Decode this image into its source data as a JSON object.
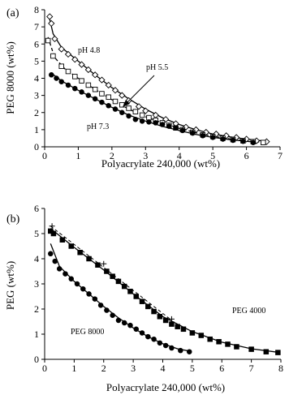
{
  "chart_data": [
    {
      "type": "scatter",
      "panel_label": "(a)",
      "xlabel": "Polyacrylate 240,000  (wt%)",
      "ylabel": "PEG 8000 (wt%)",
      "xlim": [
        0,
        7
      ],
      "ylim": [
        0,
        8
      ],
      "xticks": [
        0,
        1,
        2,
        3,
        4,
        5,
        6,
        7
      ],
      "yticks": [
        0,
        1,
        2,
        3,
        4,
        5,
        6,
        7,
        8
      ],
      "grid": false,
      "annotations": [
        "pH 4.8",
        "pH 5.5",
        "pH 7.3"
      ],
      "series": [
        {
          "name": "pH 4.8",
          "marker": "diamond-open",
          "points": [
            [
              0.15,
              7.6
            ],
            [
              0.2,
              7.2
            ],
            [
              0.3,
              6.3
            ],
            [
              0.5,
              5.7
            ],
            [
              0.7,
              5.4
            ],
            [
              0.9,
              5.1
            ],
            [
              1.1,
              4.8
            ],
            [
              1.3,
              4.5
            ],
            [
              1.5,
              4.2
            ],
            [
              1.7,
              3.9
            ],
            [
              1.9,
              3.6
            ],
            [
              2.1,
              3.3
            ],
            [
              2.3,
              3.0
            ],
            [
              2.5,
              2.7
            ],
            [
              2.8,
              2.35
            ],
            [
              3.0,
              2.1
            ],
            [
              3.3,
              1.85
            ],
            [
              3.6,
              1.6
            ],
            [
              3.9,
              1.35
            ],
            [
              4.2,
              1.15
            ],
            [
              4.5,
              1.0
            ],
            [
              4.8,
              0.85
            ],
            [
              5.1,
              0.75
            ],
            [
              5.4,
              0.65
            ],
            [
              5.7,
              0.55
            ],
            [
              6.0,
              0.45
            ],
            [
              6.3,
              0.35
            ],
            [
              6.6,
              0.3
            ]
          ],
          "curve": [
            [
              0.12,
              7.7
            ],
            [
              0.25,
              6.6
            ],
            [
              0.5,
              5.8
            ],
            [
              1.0,
              5.0
            ],
            [
              1.5,
              4.2
            ],
            [
              2.0,
              3.45
            ],
            [
              2.5,
              2.8
            ],
            [
              3.0,
              2.2
            ],
            [
              3.5,
              1.7
            ],
            [
              4.0,
              1.3
            ],
            [
              4.5,
              1.0
            ],
            [
              5.0,
              0.75
            ],
            [
              5.5,
              0.58
            ],
            [
              6.0,
              0.45
            ],
            [
              6.6,
              0.32
            ]
          ]
        },
        {
          "name": "pH 5.5",
          "marker": "square",
          "points": [
            [
              0.1,
              6.2
            ],
            [
              0.25,
              5.3
            ],
            [
              0.5,
              4.7
            ],
            [
              0.7,
              4.4
            ],
            [
              0.9,
              4.1
            ],
            [
              1.1,
              3.85
            ],
            [
              1.3,
              3.6
            ],
            [
              1.5,
              3.35
            ],
            [
              1.7,
              3.1
            ],
            [
              1.9,
              2.9
            ],
            [
              2.1,
              2.65
            ],
            [
              2.3,
              2.45
            ],
            [
              2.5,
              2.25
            ],
            [
              2.7,
              2.05
            ],
            [
              2.9,
              1.85
            ],
            [
              3.1,
              1.7
            ],
            [
              3.3,
              1.55
            ],
            [
              3.5,
              1.4
            ],
            [
              3.7,
              1.25
            ],
            [
              3.9,
              1.1
            ],
            [
              4.1,
              1.0
            ],
            [
              4.4,
              0.85
            ],
            [
              4.7,
              0.7
            ],
            [
              5.0,
              0.6
            ],
            [
              5.3,
              0.5
            ],
            [
              5.6,
              0.42
            ],
            [
              5.9,
              0.35
            ],
            [
              6.2,
              0.3
            ],
            [
              6.5,
              0.25
            ]
          ],
          "curve": [
            [
              0.1,
              6.4
            ],
            [
              0.3,
              5.2
            ],
            [
              0.6,
              4.55
            ],
            [
              1.0,
              4.0
            ],
            [
              1.5,
              3.35
            ],
            [
              2.0,
              2.75
            ],
            [
              2.5,
              2.2
            ],
            [
              3.0,
              1.75
            ],
            [
              3.5,
              1.4
            ],
            [
              4.0,
              1.08
            ],
            [
              4.5,
              0.82
            ],
            [
              5.0,
              0.62
            ],
            [
              5.5,
              0.46
            ],
            [
              6.0,
              0.34
            ],
            [
              6.5,
              0.26
            ]
          ]
        },
        {
          "name": "pH 7.3",
          "marker": "circle",
          "points": [
            [
              0.2,
              4.2
            ],
            [
              0.35,
              4.0
            ],
            [
              0.5,
              3.8
            ],
            [
              0.7,
              3.6
            ],
            [
              0.9,
              3.4
            ],
            [
              1.1,
              3.2
            ],
            [
              1.3,
              3.0
            ],
            [
              1.5,
              2.8
            ],
            [
              1.7,
              2.6
            ],
            [
              1.9,
              2.4
            ],
            [
              2.1,
              2.2
            ],
            [
              2.3,
              2.0
            ],
            [
              2.5,
              1.8
            ],
            [
              2.7,
              1.6
            ],
            [
              2.9,
              1.5
            ],
            [
              3.1,
              1.45
            ],
            [
              3.3,
              1.4
            ],
            [
              3.5,
              1.3
            ],
            [
              3.7,
              1.2
            ],
            [
              3.9,
              1.1
            ],
            [
              4.1,
              0.95
            ],
            [
              4.4,
              0.8
            ],
            [
              4.7,
              0.65
            ],
            [
              5.0,
              0.55
            ],
            [
              5.3,
              0.45
            ],
            [
              5.6,
              0.38
            ],
            [
              5.9,
              0.32
            ],
            [
              6.2,
              0.25
            ]
          ],
          "curve": [
            [
              0.2,
              4.3
            ],
            [
              0.5,
              3.85
            ],
            [
              1.0,
              3.3
            ],
            [
              1.5,
              2.8
            ],
            [
              2.0,
              2.3
            ],
            [
              2.5,
              1.85
            ],
            [
              3.0,
              1.5
            ],
            [
              3.5,
              1.2
            ],
            [
              4.0,
              0.95
            ],
            [
              4.5,
              0.72
            ],
            [
              5.0,
              0.55
            ],
            [
              5.5,
              0.42
            ],
            [
              6.0,
              0.32
            ],
            [
              6.3,
              0.27
            ]
          ]
        }
      ]
    },
    {
      "type": "scatter",
      "panel_label": "(b)",
      "xlabel": "Polyacrylate 240,000 (wt%)",
      "ylabel": "PEG (wt%)",
      "xlim": [
        0,
        8
      ],
      "ylim": [
        0,
        6
      ],
      "xticks": [
        0,
        1,
        2,
        3,
        4,
        5,
        6,
        7,
        8
      ],
      "yticks": [
        0,
        1,
        2,
        3,
        4,
        5,
        6
      ],
      "grid": false,
      "annotations": [
        "PEG 4000",
        "PEG 8000"
      ],
      "series": [
        {
          "name": "PEG 4000",
          "marker": "square",
          "points": [
            [
              0.2,
              5.1
            ],
            [
              0.3,
              5.0
            ],
            [
              0.6,
              4.75
            ],
            [
              0.9,
              4.5
            ],
            [
              1.2,
              4.25
            ],
            [
              1.5,
              4.0
            ],
            [
              1.8,
              3.75
            ],
            [
              2.1,
              3.5
            ],
            [
              2.3,
              3.3
            ],
            [
              2.5,
              3.1
            ],
            [
              2.7,
              2.9
            ],
            [
              2.9,
              2.7
            ],
            [
              3.1,
              2.5
            ],
            [
              3.3,
              2.3
            ],
            [
              3.5,
              2.1
            ],
            [
              3.7,
              1.9
            ],
            [
              3.9,
              1.7
            ],
            [
              4.1,
              1.55
            ],
            [
              4.3,
              1.4
            ],
            [
              4.5,
              1.3
            ],
            [
              4.7,
              1.2
            ],
            [
              5.0,
              1.05
            ],
            [
              5.3,
              0.95
            ],
            [
              5.6,
              0.8
            ],
            [
              5.9,
              0.7
            ],
            [
              6.2,
              0.6
            ],
            [
              6.5,
              0.5
            ],
            [
              7.0,
              0.4
            ],
            [
              7.5,
              0.3
            ],
            [
              7.9,
              0.27
            ]
          ],
          "curve": [
            [
              0.2,
              5.2
            ],
            [
              1.0,
              4.45
            ],
            [
              2.0,
              3.55
            ],
            [
              3.0,
              2.6
            ],
            [
              4.0,
              1.7
            ],
            [
              5.0,
              1.1
            ],
            [
              6.0,
              0.68
            ],
            [
              7.0,
              0.42
            ],
            [
              7.9,
              0.28
            ]
          ]
        },
        {
          "name": "PEG 4000 (+)",
          "marker": "plus",
          "points": [
            [
              0.25,
              5.3
            ],
            [
              2.0,
              3.8
            ],
            [
              4.3,
              1.6
            ]
          ],
          "curve": [
            [
              0.2,
              5.3
            ],
            [
              4.3,
              1.55
            ]
          ],
          "dashed": true
        },
        {
          "name": "PEG 8000",
          "marker": "circle",
          "points": [
            [
              0.2,
              4.2
            ],
            [
              0.35,
              3.9
            ],
            [
              0.5,
              3.6
            ],
            [
              0.7,
              3.4
            ],
            [
              0.9,
              3.2
            ],
            [
              1.1,
              3.0
            ],
            [
              1.3,
              2.8
            ],
            [
              1.5,
              2.6
            ],
            [
              1.7,
              2.4
            ],
            [
              1.9,
              2.15
            ],
            [
              2.1,
              1.95
            ],
            [
              2.3,
              1.75
            ],
            [
              2.5,
              1.55
            ],
            [
              2.7,
              1.45
            ],
            [
              2.9,
              1.35
            ],
            [
              3.1,
              1.2
            ],
            [
              3.3,
              1.05
            ],
            [
              3.5,
              0.9
            ],
            [
              3.7,
              0.8
            ],
            [
              3.9,
              0.65
            ],
            [
              4.1,
              0.55
            ],
            [
              4.3,
              0.45
            ],
            [
              4.6,
              0.35
            ],
            [
              4.9,
              0.3
            ]
          ],
          "curve": [
            [
              0.2,
              4.6
            ],
            [
              0.5,
              3.7
            ],
            [
              1.0,
              3.1
            ],
            [
              1.5,
              2.6
            ],
            [
              2.0,
              2.1
            ],
            [
              2.5,
              1.65
            ],
            [
              3.0,
              1.25
            ],
            [
              3.5,
              0.9
            ],
            [
              4.0,
              0.62
            ],
            [
              4.5,
              0.42
            ],
            [
              4.9,
              0.33
            ]
          ]
        }
      ]
    }
  ]
}
